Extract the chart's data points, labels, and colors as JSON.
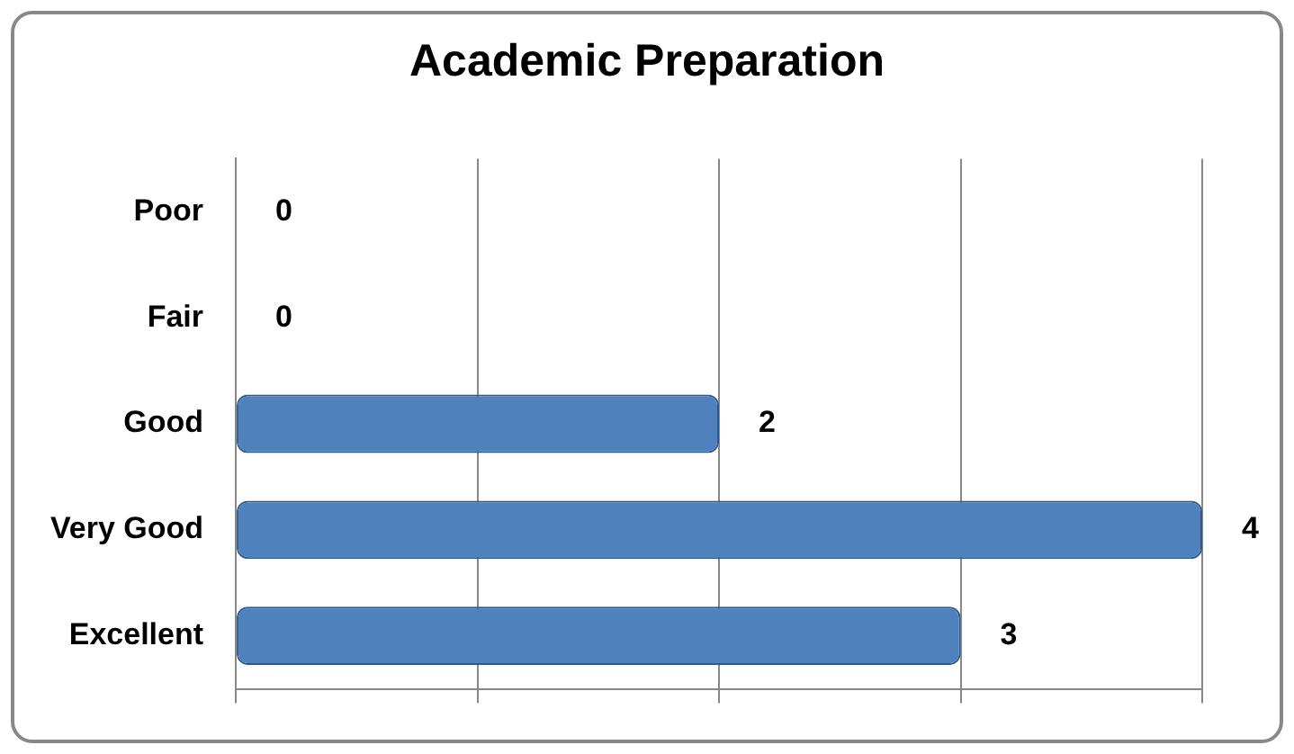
{
  "chart_data": {
    "type": "bar",
    "orientation": "horizontal",
    "title": "Academic Preparation",
    "categories": [
      "Poor",
      "Fair",
      "Good",
      "Very Good",
      "Excellent"
    ],
    "values": [
      0,
      0,
      2,
      4,
      3
    ],
    "color": "#4f81bd",
    "xlim": [
      0,
      4
    ],
    "xticks": [
      {
        "value": 0,
        "label": null
      },
      {
        "value": 1,
        "label": null
      },
      {
        "value": 2,
        "label": null
      },
      {
        "value": 3,
        "label": null
      },
      {
        "value": 4,
        "label": null
      }
    ],
    "grid": "x",
    "tick_labels": "y",
    "data_labels": true,
    "legend": false
  }
}
